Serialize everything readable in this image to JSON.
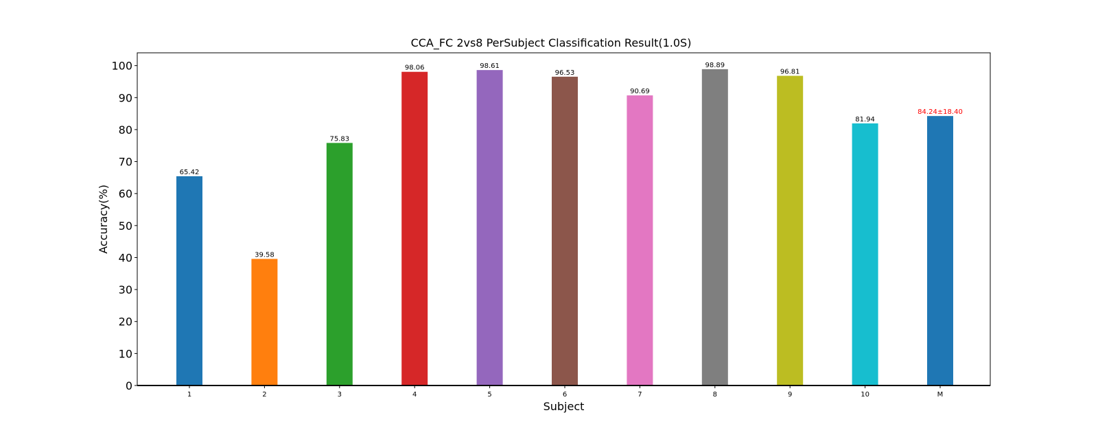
{
  "chart_data": {
    "type": "bar",
    "title": "CCA_FC 2vs8 PerSubject Classification Result(1.0S)",
    "xlabel": "Subject",
    "ylabel": "Accuracy(%)",
    "ylim": [
      0,
      104
    ],
    "yticks": [
      0,
      10,
      20,
      30,
      40,
      50,
      60,
      70,
      80,
      90,
      100
    ],
    "ytick_labels": [
      "0",
      "10",
      "20",
      "30",
      "40",
      "50",
      "60",
      "70",
      "80",
      "90",
      "100"
    ],
    "grid": false,
    "categories": [
      "1",
      "2",
      "3",
      "4",
      "5",
      "6",
      "7",
      "8",
      "9",
      "10",
      "M"
    ],
    "values": [
      65.42,
      39.58,
      75.83,
      98.06,
      98.61,
      96.53,
      90.69,
      98.89,
      96.81,
      81.94,
      84.24
    ],
    "labels": [
      "65.42",
      "39.58",
      "75.83",
      "98.06",
      "98.61",
      "96.53",
      "90.69",
      "98.89",
      "96.81",
      "81.94",
      "84.24±18.40"
    ],
    "colors": [
      "#1f77b4",
      "#ff7f0e",
      "#2ca02c",
      "#d62728",
      "#9467bd",
      "#8c564b",
      "#e377c2",
      "#7f7f7f",
      "#bcbd22",
      "#17becf",
      "#1f77b4"
    ],
    "label_colors": [
      "#000000",
      "#000000",
      "#000000",
      "#000000",
      "#000000",
      "#000000",
      "#000000",
      "#000000",
      "#000000",
      "#000000",
      "#ff0000"
    ]
  }
}
